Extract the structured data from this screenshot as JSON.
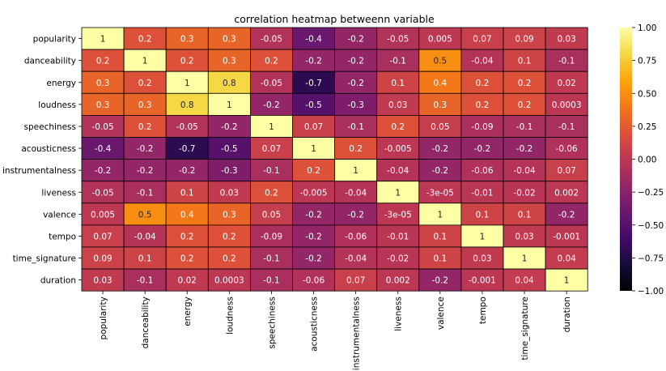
{
  "chart_data": {
    "type": "heatmap",
    "title": "correlation heatmap betweenn variable",
    "xlabel": "",
    "ylabel": "",
    "colormap": "inferno",
    "vmin": -1.0,
    "vmax": 1.0,
    "grid_line_color": "#000000",
    "legend_placement": "right",
    "colorbar_ticks": [
      "1.00",
      "0.75",
      "0.50",
      "0.25",
      "0.00",
      "−0.25",
      "−0.50",
      "−0.75",
      "−1.00"
    ],
    "colorbar_tick_values": [
      1.0,
      0.75,
      0.5,
      0.25,
      0.0,
      -0.25,
      -0.5,
      -0.75,
      -1.0
    ],
    "variables": [
      "popularity",
      "danceability",
      "energy",
      "loudness",
      "speechiness",
      "acousticness",
      "instrumentalness",
      "liveness",
      "valence",
      "tempo",
      "time_signature",
      "duration"
    ],
    "values": [
      [
        1,
        0.2,
        0.3,
        0.3,
        -0.05,
        -0.4,
        -0.2,
        -0.05,
        0.005,
        0.07,
        0.09,
        0.03
      ],
      [
        0.2,
        1,
        0.2,
        0.3,
        0.2,
        -0.2,
        -0.2,
        -0.1,
        0.5,
        -0.04,
        0.1,
        -0.1
      ],
      [
        0.3,
        0.2,
        1,
        0.8,
        -0.05,
        -0.7,
        -0.2,
        0.1,
        0.4,
        0.2,
        0.2,
        0.02
      ],
      [
        0.3,
        0.3,
        0.8,
        1,
        -0.2,
        -0.5,
        -0.3,
        0.03,
        0.3,
        0.2,
        0.2,
        0.0003
      ],
      [
        -0.05,
        0.2,
        -0.05,
        -0.2,
        1,
        0.07,
        -0.1,
        0.2,
        0.05,
        -0.09,
        -0.1,
        -0.1
      ],
      [
        -0.4,
        -0.2,
        -0.7,
        -0.5,
        0.07,
        1,
        0.2,
        -0.005,
        -0.2,
        -0.2,
        -0.2,
        -0.06
      ],
      [
        -0.2,
        -0.2,
        -0.2,
        -0.3,
        -0.1,
        0.2,
        1,
        -0.04,
        -0.2,
        -0.06,
        -0.04,
        0.07
      ],
      [
        -0.05,
        -0.1,
        0.1,
        0.03,
        0.2,
        -0.005,
        -0.04,
        1,
        -3e-05,
        -0.01,
        -0.02,
        0.002
      ],
      [
        0.005,
        0.5,
        0.4,
        0.3,
        0.05,
        -0.2,
        -0.2,
        -3e-05,
        1,
        0.1,
        0.1,
        -0.2
      ],
      [
        0.07,
        -0.04,
        0.2,
        0.2,
        -0.09,
        -0.2,
        -0.06,
        -0.01,
        0.1,
        1,
        0.03,
        -0.001
      ],
      [
        0.09,
        0.1,
        0.2,
        0.2,
        -0.1,
        -0.2,
        -0.04,
        -0.02,
        0.1,
        0.03,
        1,
        0.04
      ],
      [
        0.03,
        -0.1,
        0.02,
        0.0003,
        -0.1,
        -0.06,
        0.07,
        0.002,
        -0.2,
        -0.001,
        0.04,
        1
      ]
    ],
    "labels": [
      [
        "1",
        "0.2",
        "0.3",
        "0.3",
        "-0.05",
        "-0.4",
        "-0.2",
        "-0.05",
        "0.005",
        "0.07",
        "0.09",
        "0.03"
      ],
      [
        "0.2",
        "1",
        "0.2",
        "0.3",
        "0.2",
        "-0.2",
        "-0.2",
        "-0.1",
        "0.5",
        "-0.04",
        "0.1",
        "-0.1"
      ],
      [
        "0.3",
        "0.2",
        "1",
        "0.8",
        "-0.05",
        "-0.7",
        "-0.2",
        "0.1",
        "0.4",
        "0.2",
        "0.2",
        "0.02"
      ],
      [
        "0.3",
        "0.3",
        "0.8",
        "1",
        "-0.2",
        "-0.5",
        "-0.3",
        "0.03",
        "0.3",
        "0.2",
        "0.2",
        "0.0003"
      ],
      [
        "-0.05",
        "0.2",
        "-0.05",
        "-0.2",
        "1",
        "0.07",
        "-0.1",
        "0.2",
        "0.05",
        "-0.09",
        "-0.1",
        "-0.1"
      ],
      [
        "-0.4",
        "-0.2",
        "-0.7",
        "-0.5",
        "0.07",
        "1",
        "0.2",
        "-0.005",
        "-0.2",
        "-0.2",
        "-0.2",
        "-0.06"
      ],
      [
        "-0.2",
        "-0.2",
        "-0.2",
        "-0.3",
        "-0.1",
        "0.2",
        "1",
        "-0.04",
        "-0.2",
        "-0.06",
        "-0.04",
        "0.07"
      ],
      [
        "-0.05",
        "-0.1",
        "0.1",
        "0.03",
        "0.2",
        "-0.005",
        "-0.04",
        "1",
        "-3e-05",
        "-0.01",
        "-0.02",
        "0.002"
      ],
      [
        "0.005",
        "0.5",
        "0.4",
        "0.3",
        "0.05",
        "-0.2",
        "-0.2",
        "-3e-05",
        "1",
        "0.1",
        "0.1",
        "-0.2"
      ],
      [
        "0.07",
        "-0.04",
        "0.2",
        "0.2",
        "-0.09",
        "-0.2",
        "-0.06",
        "-0.01",
        "0.1",
        "1",
        "0.03",
        "-0.001"
      ],
      [
        "0.09",
        "0.1",
        "0.2",
        "0.2",
        "-0.1",
        "-0.2",
        "-0.04",
        "-0.02",
        "0.1",
        "0.03",
        "1",
        "0.04"
      ],
      [
        "0.03",
        "-0.1",
        "0.02",
        "0.0003",
        "-0.1",
        "-0.06",
        "0.07",
        "0.002",
        "-0.2",
        "-0.001",
        "0.04",
        "1"
      ]
    ]
  }
}
